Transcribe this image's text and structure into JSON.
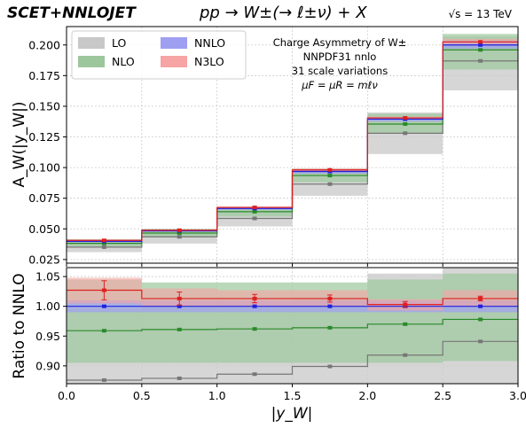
{
  "header": {
    "brand": "SCET+NNLOJET",
    "process": "pp → W±(→ ℓ±ν)  +  X",
    "energy": "√s = 13 TeV"
  },
  "annotation": {
    "lines": [
      "Charge Asymmetry of W±",
      "NNPDF31 nnlo",
      "31 scale variations",
      "μF = μR = mℓν"
    ]
  },
  "legend": [
    {
      "label": "LO",
      "color": "#c8c8c8"
    },
    {
      "label": "NNLO",
      "color": "#9f9ff2"
    },
    {
      "label": "NLO",
      "color": "#9cc79c"
    },
    {
      "label": "N3LO",
      "color": "#f7a4a4"
    }
  ],
  "colors": {
    "LO": "#777777",
    "NLO": "#2a8a2a",
    "NNLO": "#2020dd",
    "N3LO": "#dd2020"
  },
  "chart_data": [
    {
      "type": "step",
      "xlabel": "",
      "ylabel": "A_W(|y_W|)",
      "xlim": [
        0.0,
        3.0
      ],
      "ylim": [
        0.022,
        0.215
      ],
      "yticks": [
        "0.025",
        "0.050",
        "0.075",
        "0.100",
        "0.125",
        "0.150",
        "0.175",
        "0.200"
      ],
      "ytick_values": [
        0.025,
        0.05,
        0.075,
        0.1,
        0.125,
        0.15,
        0.175,
        0.2
      ],
      "grid": true,
      "legend_position": "top-left",
      "bins": [
        0.0,
        0.5,
        1.0,
        1.5,
        2.0,
        2.5,
        3.0
      ],
      "series": [
        {
          "name": "LO",
          "central": [
            0.0351,
            0.0435,
            0.0585,
            0.0865,
            0.128,
            0.187
          ],
          "low": [
            0.031,
            0.038,
            0.052,
            0.077,
            0.111,
            0.163
          ],
          "high": [
            0.04,
            0.0495,
            0.066,
            0.0965,
            0.145,
            0.207
          ]
        },
        {
          "name": "NLO",
          "central": [
            0.0382,
            0.0466,
            0.064,
            0.0935,
            0.1355,
            0.196
          ],
          "low": [
            0.0355,
            0.043,
            0.06,
            0.088,
            0.128,
            0.18
          ],
          "high": [
            0.0415,
            0.05,
            0.068,
            0.099,
            0.144,
            0.209
          ]
        },
        {
          "name": "NNLO",
          "central": [
            0.0398,
            0.0484,
            0.0666,
            0.0968,
            0.1395,
            0.2
          ],
          "low": [
            0.039,
            0.0476,
            0.0655,
            0.095,
            0.1375,
            0.197
          ],
          "high": [
            0.0408,
            0.049,
            0.0676,
            0.0985,
            0.1405,
            0.2035
          ]
        },
        {
          "name": "N3LO",
          "central": [
            0.0406,
            0.0489,
            0.0675,
            0.0981,
            0.1405,
            0.2025
          ],
          "low": [
            0.04,
            0.0485,
            0.0668,
            0.0972,
            0.1395,
            0.2005
          ],
          "high": [
            0.0412,
            0.0494,
            0.0682,
            0.0994,
            0.1415,
            0.205
          ]
        }
      ]
    },
    {
      "type": "step",
      "xlabel": "|y_W|",
      "ylabel": "Ratio to NNLO",
      "xlim": [
        0.0,
        3.0
      ],
      "ylim": [
        0.87,
        1.065
      ],
      "xticks": [
        "0.0",
        "0.5",
        "1.0",
        "1.5",
        "2.0",
        "2.5",
        "3.0"
      ],
      "xtick_values": [
        0.0,
        0.5,
        1.0,
        1.5,
        2.0,
        2.5,
        3.0
      ],
      "yticks": [
        "0.90",
        "0.95",
        "1.00",
        "1.05"
      ],
      "ytick_values": [
        0.9,
        0.95,
        1.0,
        1.05
      ],
      "grid": true,
      "bins": [
        0.0,
        0.5,
        1.0,
        1.5,
        2.0,
        2.5,
        3.0
      ],
      "series": [
        {
          "name": "LO",
          "central": [
            0.876,
            0.879,
            0.886,
            0.899,
            0.918,
            0.941
          ],
          "low": [
            0.87,
            0.87,
            0.87,
            0.87,
            0.87,
            0.87
          ],
          "high": [
            0.995,
            1.0,
            1.005,
            1.015,
            1.055,
            1.065
          ]
        },
        {
          "name": "NLO",
          "central": [
            0.959,
            0.961,
            0.962,
            0.964,
            0.97,
            0.978
          ],
          "low": [
            0.905,
            0.905,
            0.905,
            0.905,
            0.905,
            0.908
          ],
          "high": [
            1.045,
            1.04,
            1.04,
            1.04,
            1.045,
            1.055
          ]
        },
        {
          "name": "NNLO",
          "central": [
            1.0,
            1.0,
            1.0,
            1.0,
            1.0,
            1.0
          ],
          "low": [
            0.99,
            0.99,
            0.99,
            0.99,
            0.99,
            0.99
          ],
          "high": [
            1.01,
            1.01,
            1.01,
            1.01,
            1.01,
            1.01
          ]
        },
        {
          "name": "N3LO",
          "central": [
            1.027,
            1.013,
            1.013,
            1.013,
            1.003,
            1.013
          ],
          "low": [
            1.005,
            1.0,
            1.0,
            1.0,
            0.993,
            1.0
          ],
          "high": [
            1.048,
            1.03,
            1.027,
            1.027,
            1.012,
            1.027
          ],
          "err": [
            0.016,
            0.011,
            0.007,
            0.006,
            0.005,
            0.004
          ]
        }
      ]
    }
  ]
}
